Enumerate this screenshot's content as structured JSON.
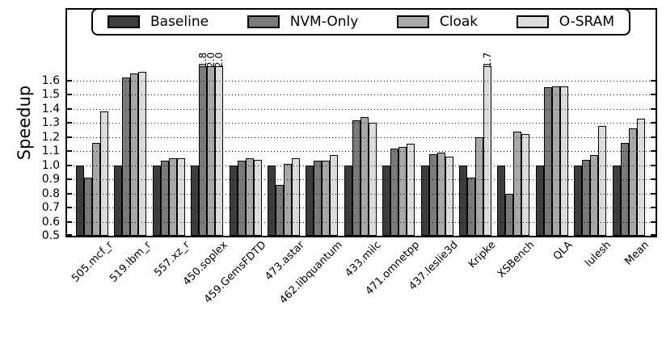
{
  "chart_data": {
    "type": "bar",
    "title": "",
    "ylabel": "Speedup",
    "xlabel": "",
    "ylim": [
      0.5,
      2.1
    ],
    "bar_display_cap": 1.7,
    "grid": "dotted horizontal, drawn over bars",
    "legend_position": "top inside, horizontal rounded box",
    "yticks": [
      "0.5",
      "0.6",
      "0.7",
      "0.8",
      "0.9",
      "1.0",
      "1.1",
      "1.2",
      "1.3",
      "1.4",
      "1.5",
      "1.6"
    ],
    "categories": [
      "505.mcf_r",
      "519.lbm_r",
      "557.xz_r",
      "450.soplex",
      "459.GemsFDTD",
      "473.astar",
      "462.libquantum",
      "433.milc",
      "471.omnetpp",
      "437.leslie3d",
      "Kripke",
      "XSBench",
      "QLA",
      "lulesh",
      "Mean"
    ],
    "series": [
      {
        "name": "Baseline",
        "color": "#3d3d3d",
        "values": [
          1.0,
          1.0,
          1.0,
          1.0,
          1.0,
          1.0,
          1.0,
          1.0,
          1.0,
          1.0,
          1.0,
          1.0,
          1.0,
          1.0,
          1.0
        ]
      },
      {
        "name": "NVM-Only",
        "color": "#7a7a7a",
        "values": [
          0.91,
          1.62,
          1.03,
          1.8,
          1.03,
          0.86,
          1.03,
          1.32,
          1.12,
          1.08,
          0.91,
          0.8,
          1.55,
          1.04,
          1.16
        ]
      },
      {
        "name": "Cloak",
        "color": "#a8a8a8",
        "values": [
          1.16,
          1.65,
          1.05,
          2.0,
          1.05,
          1.01,
          1.03,
          1.34,
          1.13,
          1.09,
          1.2,
          1.24,
          1.56,
          1.07,
          1.26
        ]
      },
      {
        "name": "O-SRAM",
        "color": "#dcdcdc",
        "values": [
          1.38,
          1.66,
          1.05,
          2.0,
          1.04,
          1.05,
          1.07,
          1.3,
          1.15,
          1.06,
          1.7,
          1.22,
          1.56,
          1.28,
          1.33
        ]
      }
    ],
    "annotations": [
      {
        "category_index": 3,
        "series_index": 1,
        "text": "1.8"
      },
      {
        "category_index": 3,
        "series_index": 2,
        "text": "2.0"
      },
      {
        "category_index": 3,
        "series_index": 3,
        "text": "2.0"
      },
      {
        "category_index": 10,
        "series_index": 3,
        "text": "1.7"
      }
    ]
  }
}
